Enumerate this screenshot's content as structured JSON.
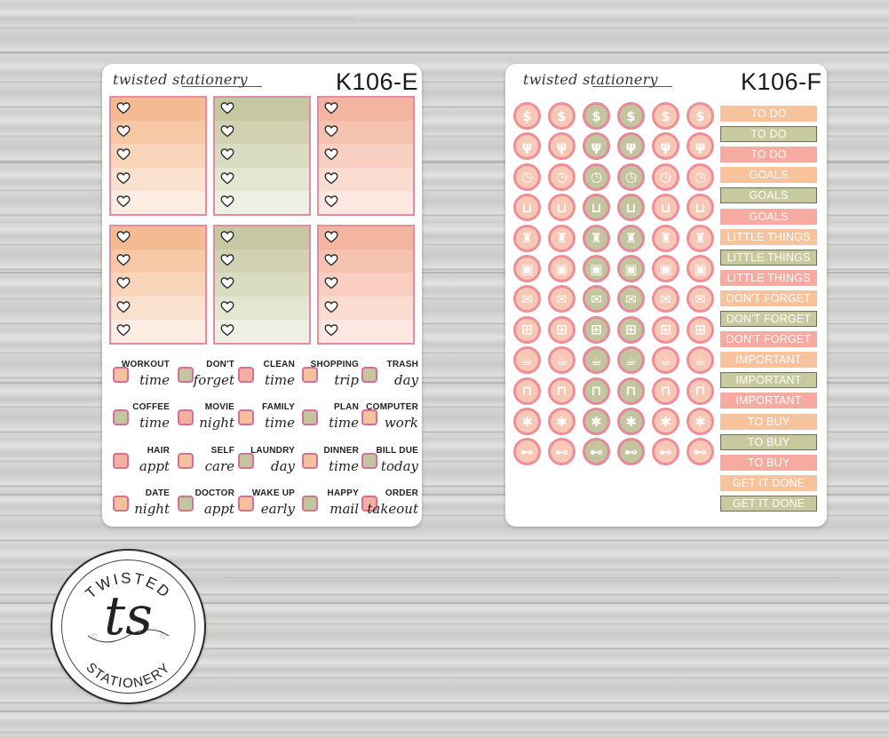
{
  "sheets": [
    {
      "brand": "twisted stationery",
      "code": "K106-E",
      "stickers": [
        {
          "line1": "WORKOUT",
          "line2": "time"
        },
        {
          "line1": "DON'T",
          "line2": "forget"
        },
        {
          "line1": "CLEAN",
          "line2": "time"
        },
        {
          "line1": "SHOPPING",
          "line2": "trip"
        },
        {
          "line1": "TRASH",
          "line2": "day"
        },
        {
          "line1": "COFFEE",
          "line2": "time"
        },
        {
          "line1": "MOVIE",
          "line2": "night"
        },
        {
          "line1": "FAMILY",
          "line2": "time"
        },
        {
          "line1": "PLAN",
          "line2": "time"
        },
        {
          "line1": "COMPUTER",
          "line2": "work"
        },
        {
          "line1": "HAIR",
          "line2": "appt"
        },
        {
          "line1": "SELF",
          "line2": "care"
        },
        {
          "line1": "LAUNDRY",
          "line2": "day"
        },
        {
          "line1": "DINNER",
          "line2": "time"
        },
        {
          "line1": "BILL DUE",
          "line2": "today"
        },
        {
          "line1": "DATE",
          "line2": "night"
        },
        {
          "line1": "DOCTOR",
          "line2": "appt"
        },
        {
          "line1": "WAKE UP",
          "line2": "early"
        },
        {
          "line1": "HAPPY",
          "line2": "mail"
        },
        {
          "line1": "ORDER",
          "line2": "takeout"
        }
      ]
    },
    {
      "brand": "twisted stationery",
      "code": "K106-F",
      "icon_rows": [
        "$",
        "fork-knife-icon",
        "clock-icon",
        "cart-icon",
        "spray-bottle-icon",
        "laundry-icon",
        "envelope-icon",
        "gift-icon",
        "coffee-cup-icon",
        "trash-can-icon",
        "asterisk-icon",
        "dumbbell-icon"
      ],
      "labels": [
        "TO DO",
        "TO DO",
        "TO DO",
        "GOALS",
        "GOALS",
        "GOALS",
        "LITTLE THINGS",
        "LITTLE THINGS",
        "LITTLE THINGS",
        "DON'T FORGET",
        "DON'T FORGET",
        "DON'T FORGET",
        "IMPORTANT",
        "IMPORTANT",
        "IMPORTANT",
        "TO BUY",
        "TO BUY",
        "TO BUY",
        "GET IT DONE",
        "GET IT DONE"
      ]
    }
  ],
  "logo": {
    "top_text": "TWISTED",
    "monogram": "ts",
    "bottom_text": "STATIONERY"
  },
  "colors": {
    "peach": "#f6c39c",
    "sage": "#c3c59e",
    "coral": "#f6aaa0",
    "pink_border": "#e38aa5"
  }
}
